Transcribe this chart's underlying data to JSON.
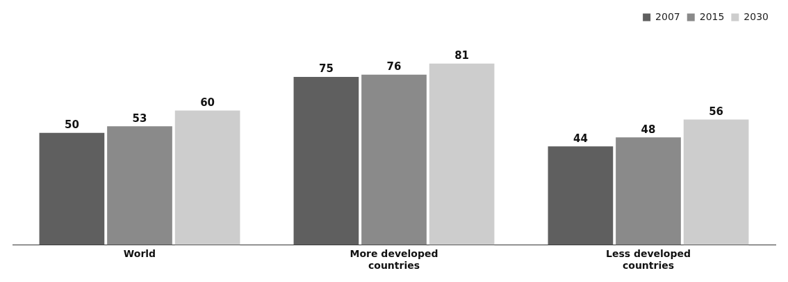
{
  "chart_data": {
    "type": "bar",
    "categories": [
      "World",
      "More developed countries",
      "Less developed countries"
    ],
    "series": [
      {
        "name": "2007",
        "color": "#5f5f5f",
        "values": [
          50,
          75,
          44
        ]
      },
      {
        "name": "2015",
        "color": "#8a8a8a",
        "values": [
          53,
          76,
          48
        ]
      },
      {
        "name": "2030",
        "color": "#cdcdcd",
        "values": [
          60,
          81,
          56
        ]
      }
    ],
    "data_labels": true,
    "legend": "top right",
    "grid": false
  }
}
